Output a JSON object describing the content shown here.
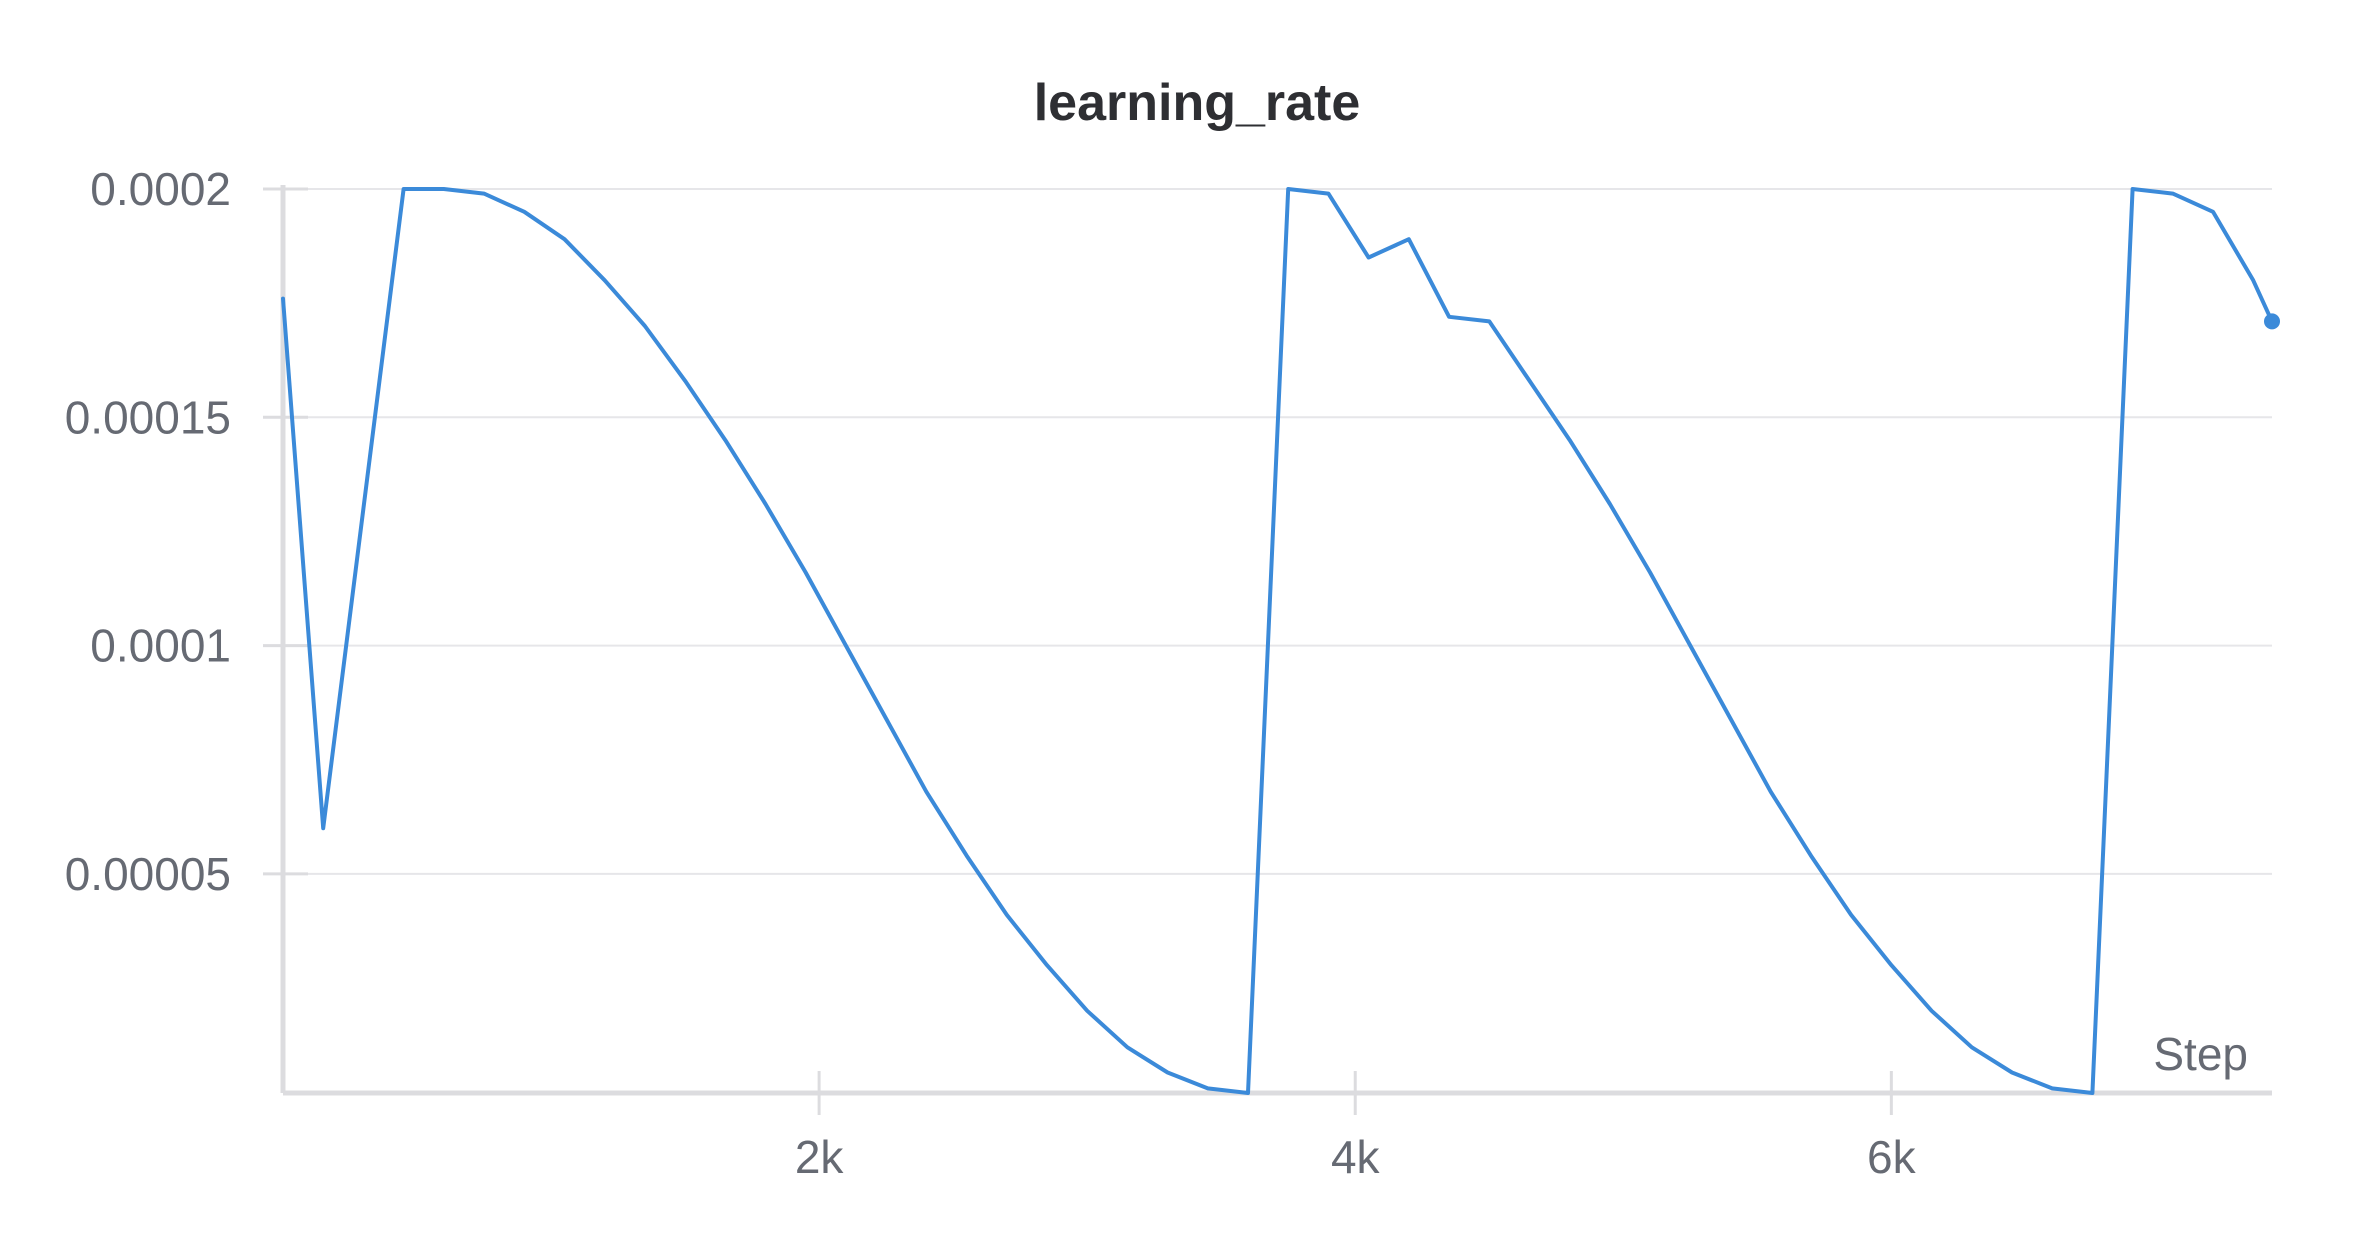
{
  "chart_data": {
    "type": "line",
    "title": "learning_rate",
    "xlabel": "Step",
    "ylabel": "",
    "xlim": [
      0,
      7420
    ],
    "ylim": [
      2e-06,
      0.0002
    ],
    "grid": true,
    "x_ticks": [
      {
        "value": 2000,
        "label": "2k"
      },
      {
        "value": 4000,
        "label": "4k"
      },
      {
        "value": 6000,
        "label": "6k"
      }
    ],
    "y_ticks": [
      {
        "value": 5e-05,
        "label": "0.00005"
      },
      {
        "value": 0.0001,
        "label": "0.0001"
      },
      {
        "value": 0.00015,
        "label": "0.00015"
      },
      {
        "value": 0.0002,
        "label": "0.0002"
      }
    ],
    "series": [
      {
        "color": "#3b8ad9",
        "end_marker": true,
        "x": [
          0,
          150,
          300,
          450,
          600,
          750,
          900,
          1050,
          1200,
          1350,
          1500,
          1650,
          1800,
          1950,
          2100,
          2250,
          2400,
          2550,
          2700,
          2850,
          3000,
          3150,
          3300,
          3450,
          3600,
          3750,
          3900,
          4050,
          4200,
          4350,
          4500,
          4650,
          4800,
          4950,
          5100,
          5250,
          5400,
          5550,
          5700,
          5850,
          6000,
          6150,
          6300,
          6450,
          6600,
          6750,
          6900,
          7050,
          7200,
          7350,
          7420
        ],
        "y": [
          0.000176,
          6e-05,
          0.00013,
          0.0002,
          0.0002,
          0.000199,
          0.000195,
          0.000189,
          0.00018,
          0.00017,
          0.000158,
          0.000145,
          0.000131,
          0.000116,
          0.0001,
          8.4e-05,
          6.8e-05,
          5.4e-05,
          4.1e-05,
          3e-05,
          2e-05,
          1.2e-05,
          6.5e-06,
          3e-06,
          2e-06,
          0.0002,
          0.000199,
          0.000185,
          0.000189,
          0.000172,
          0.000171,
          0.000158,
          0.000145,
          0.000131,
          0.000116,
          0.0001,
          8.4e-05,
          6.8e-05,
          5.4e-05,
          4.1e-05,
          3e-05,
          2e-05,
          1.2e-05,
          6.5e-06,
          3e-06,
          2e-06,
          0.0002,
          0.000199,
          0.000195,
          0.00018,
          0.000171
        ]
      }
    ]
  }
}
